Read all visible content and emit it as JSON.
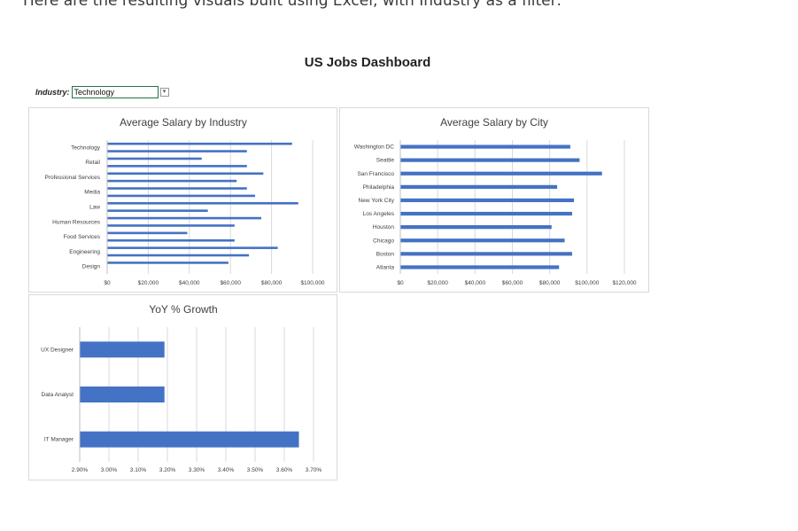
{
  "caption": "Here are the resulting visuals built using Excel, with Industry as a filter:",
  "dashboard_title": "US Jobs Dashboard",
  "filter": {
    "label": "Industry:",
    "value": "Technology"
  },
  "colors": {
    "bar": "#4472c4",
    "grid": "#d9d9d9",
    "panel_border": "#d9d9d9"
  },
  "chart_data": [
    {
      "id": "industry",
      "type": "bar",
      "orientation": "horizontal",
      "title": "Average Salary by Industry",
      "categories": [
        "Technology",
        "",
        "Retail",
        "",
        "Professional Services",
        "",
        "Media",
        "",
        "Law",
        "",
        "Human Resources",
        "",
        "Food Services",
        "",
        "Engineering",
        "",
        "Design",
        ""
      ],
      "values": [
        90000,
        68000,
        46000,
        68000,
        76000,
        63000,
        68000,
        72000,
        93000,
        49000,
        75000,
        62000,
        39000,
        62000,
        83000,
        69000,
        59000,
        0
      ],
      "tick_labels": [
        "$0",
        "$20,000",
        "$40,000",
        "$60,000",
        "$80,000",
        "$100,000"
      ],
      "xlim": [
        0,
        100000
      ],
      "grid": true
    },
    {
      "id": "city",
      "type": "bar",
      "orientation": "horizontal",
      "title": "Average Salary by City",
      "categories": [
        "Washington DC",
        "Seattle",
        "San Francisco",
        "Philadelphia",
        "New York City",
        "Los Angeles",
        "Houston",
        "Chicago",
        "Boston",
        "Atlanta"
      ],
      "values": [
        91000,
        96000,
        108000,
        84000,
        93000,
        92000,
        81000,
        88000,
        92000,
        85000
      ],
      "tick_labels": [
        "$0",
        "$20,000",
        "$40,000",
        "$60,000",
        "$80,000",
        "$100,000",
        "$120,000"
      ],
      "xlim": [
        0,
        120000
      ],
      "grid": true
    },
    {
      "id": "yoy",
      "type": "bar",
      "orientation": "horizontal",
      "title": "YoY % Growth",
      "categories": [
        "UX Designer",
        "Data Analyst",
        "IT Manager"
      ],
      "values": [
        3.19,
        3.19,
        3.65
      ],
      "tick_labels": [
        "2.90%",
        "3.00%",
        "3.10%",
        "3.20%",
        "3.30%",
        "3.40%",
        "3.50%",
        "3.60%",
        "3.70%"
      ],
      "xlim": [
        2.9,
        3.7
      ],
      "grid": true
    }
  ]
}
